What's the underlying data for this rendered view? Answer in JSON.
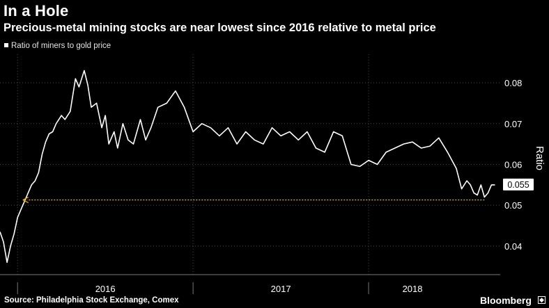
{
  "header": {
    "title": "In a Hole",
    "subtitle": "Precious-metal mining stocks are near lowest since 2016 relative to metal price"
  },
  "legend": {
    "label": "Ratio of miners to gold price"
  },
  "footer": {
    "source": "Source: Philadelphia Stock Exchange, Comex",
    "brand": "Bloomberg"
  },
  "colors": {
    "line": "#ffffff",
    "arrow": "#f2a900",
    "background": "#000000"
  },
  "chart_data": {
    "type": "line",
    "title": "In a Hole",
    "subtitle": "Precious-metal mining stocks are near lowest since 2016 relative to metal price",
    "ylabel": "Ratio",
    "xlabel": "",
    "ylim": [
      0.033,
      0.087
    ],
    "xlim": [
      2015.9,
      2018.75
    ],
    "y_ticks": [
      0.04,
      0.05,
      0.06,
      0.07,
      0.08
    ],
    "y_tick_labels": [
      "0.04",
      "0.05",
      "0.06",
      "0.07",
      "0.08"
    ],
    "x_labels": [
      {
        "label": "2016",
        "x": 2016.5
      },
      {
        "label": "2017",
        "x": 2017.5
      },
      {
        "label": "2018",
        "x": 2018.25
      }
    ],
    "x_separators": [
      2016.0,
      2017.0,
      2018.0
    ],
    "last_value": 0.055,
    "last_value_label": "0.055",
    "arrow": {
      "from_x": 2018.66,
      "to_x": 2016.03,
      "y": 0.0513
    },
    "series": [
      {
        "name": "Ratio of miners to gold price",
        "x": [
          2015.9,
          2015.92,
          2015.94,
          2015.96,
          2015.98,
          2016.0,
          2016.02,
          2016.04,
          2016.06,
          2016.08,
          2016.1,
          2016.12,
          2016.14,
          2016.16,
          2016.18,
          2016.2,
          2016.22,
          2016.25,
          2016.27,
          2016.3,
          2016.33,
          2016.35,
          2016.38,
          2016.4,
          2016.42,
          2016.45,
          2016.48,
          2016.5,
          2016.52,
          2016.55,
          2016.57,
          2016.6,
          2016.63,
          2016.66,
          2016.7,
          2016.73,
          2016.76,
          2016.8,
          2016.85,
          2016.9,
          2016.95,
          2017.0,
          2017.05,
          2017.1,
          2017.15,
          2017.2,
          2017.25,
          2017.3,
          2017.35,
          2017.4,
          2017.45,
          2017.5,
          2017.55,
          2017.6,
          2017.65,
          2017.7,
          2017.75,
          2017.8,
          2017.85,
          2017.9,
          2017.95,
          2018.0,
          2018.05,
          2018.1,
          2018.15,
          2018.2,
          2018.25,
          2018.3,
          2018.35,
          2018.4,
          2018.45,
          2018.5,
          2018.53,
          2018.56,
          2018.58,
          2018.6,
          2018.62,
          2018.64,
          2018.66,
          2018.68,
          2018.7,
          2018.72
        ],
        "values": [
          0.0435,
          0.041,
          0.036,
          0.04,
          0.043,
          0.047,
          0.049,
          0.051,
          0.053,
          0.055,
          0.056,
          0.058,
          0.0625,
          0.0655,
          0.0675,
          0.068,
          0.07,
          0.072,
          0.071,
          0.073,
          0.081,
          0.079,
          0.083,
          0.0795,
          0.074,
          0.075,
          0.069,
          0.072,
          0.065,
          0.068,
          0.064,
          0.07,
          0.066,
          0.065,
          0.071,
          0.066,
          0.069,
          0.074,
          0.075,
          0.078,
          0.074,
          0.068,
          0.07,
          0.069,
          0.067,
          0.069,
          0.065,
          0.068,
          0.066,
          0.065,
          0.069,
          0.067,
          0.068,
          0.066,
          0.068,
          0.064,
          0.063,
          0.068,
          0.067,
          0.06,
          0.0595,
          0.061,
          0.06,
          0.063,
          0.064,
          0.065,
          0.0655,
          0.064,
          0.0645,
          0.0665,
          0.063,
          0.059,
          0.054,
          0.056,
          0.055,
          0.053,
          0.0525,
          0.055,
          0.052,
          0.053,
          0.055,
          0.055
        ]
      }
    ]
  }
}
